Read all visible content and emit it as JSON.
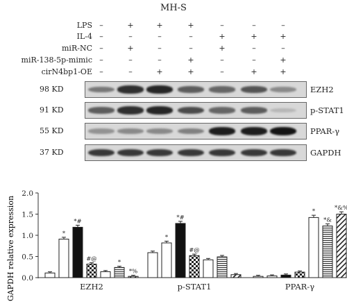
{
  "title": "MH-S",
  "conditions": [
    {
      "label": "LPS",
      "signs": [
        "–",
        "+",
        "+",
        "+",
        "–",
        "–",
        "–"
      ]
    },
    {
      "label": "IL-4",
      "signs": [
        "–",
        "–",
        "–",
        "–",
        "+",
        "+",
        "+"
      ]
    },
    {
      "label": "miR-NC",
      "signs": [
        "–",
        "+",
        "–",
        "–",
        "+",
        "–",
        "–"
      ]
    },
    {
      "label": "miR-138-5p-mimic",
      "signs": [
        "–",
        "–",
        "–",
        "+",
        "–",
        "–",
        "+"
      ]
    },
    {
      "label": "cirN4bp1-OE",
      "signs": [
        "–",
        "–",
        "+",
        "+",
        "–",
        "+",
        "+"
      ]
    }
  ],
  "blots": [
    {
      "kd": "98 KD",
      "name": "EZH2",
      "intensity": [
        0.45,
        0.85,
        0.9,
        0.6,
        0.55,
        0.65,
        0.35
      ]
    },
    {
      "kd": "91 KD",
      "name": "p-STAT1",
      "intensity": [
        0.6,
        0.85,
        0.9,
        0.7,
        0.55,
        0.6,
        0.1
      ]
    },
    {
      "kd": "55 KD",
      "name": "PPAR-γ",
      "intensity": [
        0.3,
        0.35,
        0.35,
        0.4,
        0.95,
        0.95,
        1.0
      ]
    },
    {
      "kd": "37 KD",
      "name": "GAPDH",
      "intensity": [
        0.8,
        0.8,
        0.8,
        0.8,
        0.8,
        0.8,
        0.8
      ]
    }
  ],
  "chart_data": {
    "type": "bar",
    "ylabel": "GAPDH relative expression",
    "ylim": [
      0,
      2.0
    ],
    "yticks": [
      "0.0",
      "0.5",
      "1.0",
      "1.5",
      "2.0"
    ],
    "groups": [
      {
        "name": "EZH2",
        "values": [
          0.11,
          0.91,
          1.19,
          0.32,
          0.14,
          0.24,
          0.03
        ],
        "labels": [
          "",
          "*",
          "*#",
          "#@",
          "",
          "*",
          "*%"
        ]
      },
      {
        "name": "p-STAT1",
        "values": [
          0.59,
          0.82,
          1.28,
          0.52,
          0.42,
          0.49,
          0.07
        ],
        "labels": [
          "",
          "*",
          "*#",
          "#@",
          "",
          "",
          ""
        ]
      },
      {
        "name": "PPAR-γ",
        "values": [
          0.03,
          0.04,
          0.06,
          0.13,
          1.42,
          1.22,
          1.5
        ],
        "labels": [
          "",
          "",
          "",
          "",
          "*",
          "*&",
          "*&%"
        ]
      }
    ],
    "bar_styles": [
      "white",
      "white",
      "black",
      "checker",
      "white",
      "hstripe",
      "diag"
    ],
    "grid": false
  }
}
